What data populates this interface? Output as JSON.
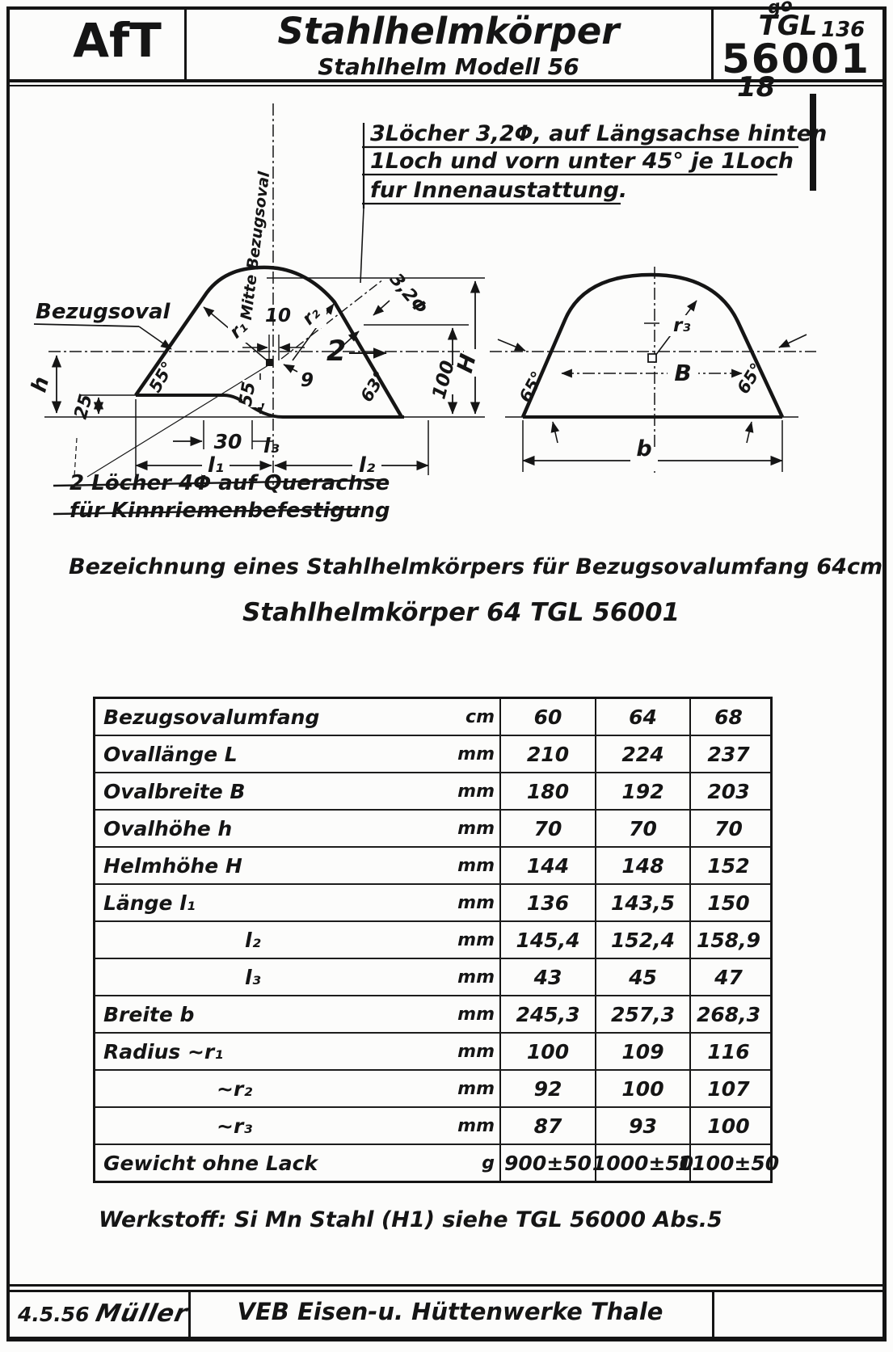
{
  "header": {
    "org": "AfT",
    "title": "Stahlhelmkörper",
    "subtitle": "Stahlhelm Modell 56",
    "standard_label": "TGL",
    "standard_number": "56001",
    "handwritten_mark": "go",
    "handwritten_136": "136",
    "handwritten_18": "18"
  },
  "drawing": {
    "note_top": [
      "3Löcher 3,2Φ, auf Längsachse hinten",
      "1Loch  und vorn unter 45° je 1Loch",
      "fur Innenaustattung."
    ],
    "note_crossed": [
      "2 Löcher 4Φ auf Querachse",
      "für Kinnriemenbefestigung"
    ],
    "labels": {
      "mitte": "Mitte Bezugsoval",
      "bezugsoval": "Bezugsoval",
      "h": "h",
      "n25": "25",
      "a55": "55°",
      "r1": "r₁",
      "n10": "10",
      "r2": "r₂",
      "n9": "9",
      "n2": "2",
      "n55": "55",
      "hole": "3,2Φ",
      "a63": "63°",
      "n100": "100",
      "H": "H",
      "n30": "30",
      "l3": "l₃",
      "l1": "l₁",
      "l2": "l₂",
      "r3": "r₃",
      "B": "B",
      "a65l": "65°",
      "a65r": "65°",
      "b": "b"
    }
  },
  "designation": {
    "line1": "Bezeichnung eines Stahlhelmkörpers für Bezugsovalumfang 64cm",
    "line2": "Stahlhelmkörper 64 TGL 56001"
  },
  "table": {
    "rows": [
      {
        "label": "Bezugsovalumfang",
        "unit": "cm",
        "v": [
          "60",
          "64",
          "68"
        ],
        "indent": 10
      },
      {
        "label": "Ovallänge  L",
        "unit": "mm",
        "v": [
          "210",
          "224",
          "237"
        ],
        "indent": 10
      },
      {
        "label": "Ovalbreite B",
        "unit": "mm",
        "v": [
          "180",
          "192",
          "203"
        ],
        "indent": 10
      },
      {
        "label": "Ovalhöhe  h",
        "unit": "mm",
        "v": [
          "70",
          "70",
          "70"
        ],
        "indent": 10
      },
      {
        "label": "Helmhöhe H",
        "unit": "mm",
        "v": [
          "144",
          "148",
          "152"
        ],
        "indent": 10
      },
      {
        "label": "Länge  l₁",
        "unit": "mm",
        "v": [
          "136",
          "143,5",
          "150"
        ],
        "indent": 10
      },
      {
        "label": "l₂",
        "unit": "mm",
        "v": [
          "145,4",
          "152,4",
          "158,9"
        ],
        "indent": 185
      },
      {
        "label": "l₃",
        "unit": "mm",
        "v": [
          "43",
          "45",
          "47"
        ],
        "indent": 185
      },
      {
        "label": "Breite  b",
        "unit": "mm",
        "v": [
          "245,3",
          "257,3",
          "268,3"
        ],
        "indent": 10
      },
      {
        "label": "Radius ~r₁",
        "unit": "mm",
        "v": [
          "100",
          "109",
          "116"
        ],
        "indent": 10
      },
      {
        "label": "~r₂",
        "unit": "mm",
        "v": [
          "92",
          "100",
          "107"
        ],
        "indent": 150
      },
      {
        "label": "~r₃",
        "unit": "mm",
        "v": [
          "87",
          "93",
          "100"
        ],
        "indent": 150
      },
      {
        "label": "Gewicht ohne Lack",
        "unit": "g",
        "v": [
          "900±50",
          "1000±50",
          "1100±50"
        ],
        "indent": 10
      }
    ]
  },
  "werkstoff": "Werkstoff:  Si Mn Stahl (H1)  siehe  TGL  56000 Abs.5",
  "footer": {
    "date": "4.5.56",
    "signature": "Müller",
    "company": "VEB  Eisen-u. Hüttenwerke  Thale"
  }
}
